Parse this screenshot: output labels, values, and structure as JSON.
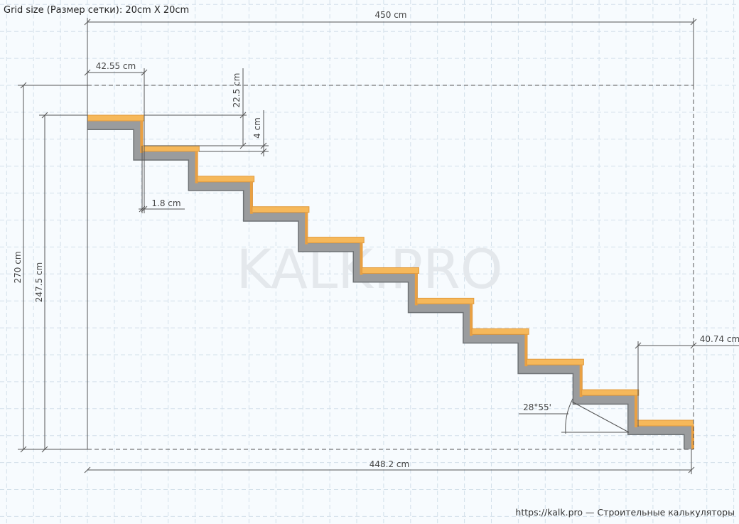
{
  "header": {
    "grid_size": "Grid size (Размер сетки): 20cm X 20cm"
  },
  "dimensions": {
    "total_length": "450 cm",
    "tread_depth": "42.55 cm",
    "step_height": "22.5 cm",
    "tread_thickness": "4 cm",
    "nosing": "1.8 cm",
    "total_height": "270 cm",
    "height_to_top_step": "247.5 cm",
    "last_tread": "40.74 cm",
    "angle": "28°55'",
    "base_length": "448.2 cm"
  },
  "watermark": "KALK.PRO",
  "footer": "https://kalk.pro — Строительные калькуляторы"
}
